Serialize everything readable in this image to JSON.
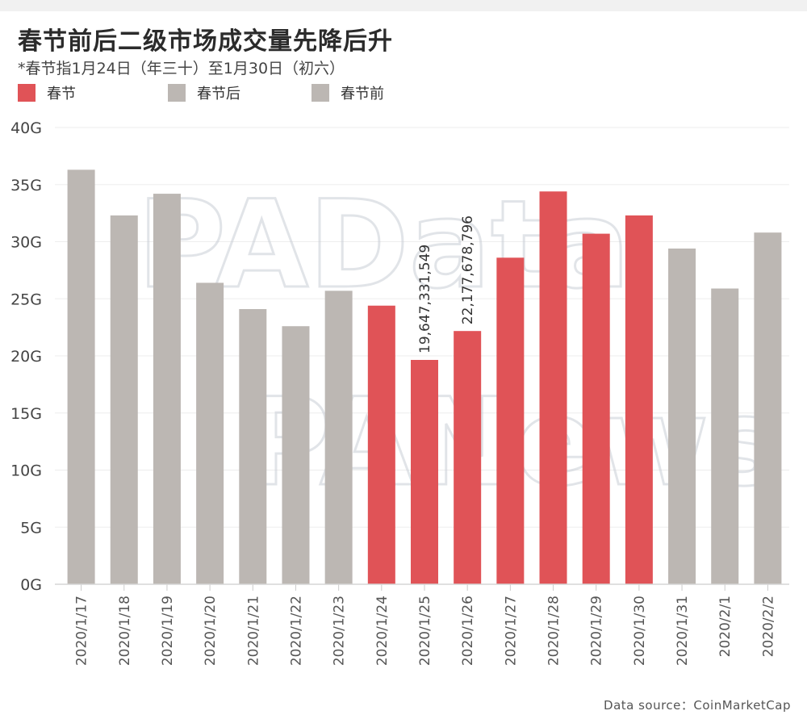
{
  "header": {
    "title": "春节前后二级市场成交量先降后升",
    "subtitle": "*春节指1月24日（年三十）至1月30日（初六）"
  },
  "legend": [
    {
      "label": "春节",
      "color": "#e05357"
    },
    {
      "label": "春节后",
      "color": "#bcb7b3"
    },
    {
      "label": "春节前",
      "color": "#bcb7b3"
    }
  ],
  "watermarks": [
    "PAData",
    "PANews"
  ],
  "source": "Data source：CoinMarketCap",
  "chart_data": {
    "type": "bar",
    "categories": [
      "2020/1/17",
      "2020/1/18",
      "2020/1/19",
      "2020/1/20",
      "2020/1/21",
      "2020/1/22",
      "2020/1/23",
      "2020/1/24",
      "2020/1/25",
      "2020/1/26",
      "2020/1/27",
      "2020/1/28",
      "2020/1/29",
      "2020/1/30",
      "2020/1/31",
      "2020/2/1",
      "2020/2/2"
    ],
    "values": [
      36300000000,
      32300000000,
      34200000000,
      26400000000,
      24100000000,
      22600000000,
      25700000000,
      24400000000,
      19647331549,
      22177678796,
      28600000000,
      34400000000,
      30700000000,
      32300000000,
      29400000000,
      25900000000,
      30800000000
    ],
    "groups": [
      "春节前",
      "春节前",
      "春节前",
      "春节前",
      "春节前",
      "春节前",
      "春节前",
      "春节",
      "春节",
      "春节",
      "春节",
      "春节",
      "春节",
      "春节",
      "春节后",
      "春节后",
      "春节后"
    ],
    "colors": {
      "春节": "#e05357",
      "春节前": "#bcb7b3",
      "春节后": "#bcb7b3"
    },
    "data_labels": [
      {
        "index": 8,
        "text": "19,647,331,549"
      },
      {
        "index": 9,
        "text": "22,177,678,796"
      }
    ],
    "yticks": [
      {
        "value": 0,
        "label": "0G"
      },
      {
        "value": 5000000000,
        "label": "5G"
      },
      {
        "value": 10000000000,
        "label": "10G"
      },
      {
        "value": 15000000000,
        "label": "15G"
      },
      {
        "value": 20000000000,
        "label": "20G"
      },
      {
        "value": 25000000000,
        "label": "25G"
      },
      {
        "value": 30000000000,
        "label": "30G"
      },
      {
        "value": 35000000000,
        "label": "35G"
      },
      {
        "value": 40000000000,
        "label": "40G"
      }
    ],
    "ylim": [
      0,
      40000000000
    ],
    "xlabel": "",
    "ylabel": "",
    "grid": true,
    "legend_position": "top-left"
  }
}
